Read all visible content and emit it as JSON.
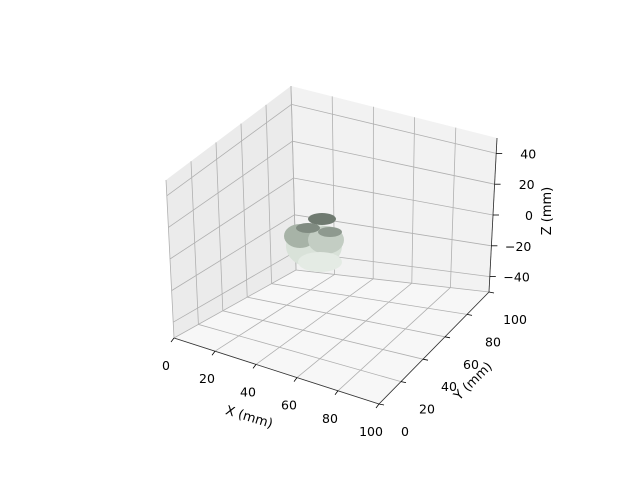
{
  "chart_data": {
    "type": "surface3d",
    "xlabel": "X (mm)",
    "ylabel": "Y (mm)",
    "zlabel": "Z (mm)",
    "xlim": [
      0,
      100
    ],
    "ylim": [
      0,
      100
    ],
    "zlim": [
      -50,
      50
    ],
    "x_ticks": [
      "0",
      "20",
      "40",
      "60",
      "80",
      "100"
    ],
    "y_ticks": [
      "0",
      "20",
      "40",
      "60",
      "80",
      "100"
    ],
    "z_ticks": [
      "−40",
      "−20",
      "0",
      "20",
      "40"
    ],
    "grid": true,
    "object": {
      "description_color": "#c8d2c8",
      "center_mm": [
        35,
        45,
        0
      ],
      "approx_extent_mm": {
        "x": [
          25,
          45
        ],
        "y": [
          35,
          55
        ],
        "z": [
          -15,
          15
        ]
      }
    }
  }
}
